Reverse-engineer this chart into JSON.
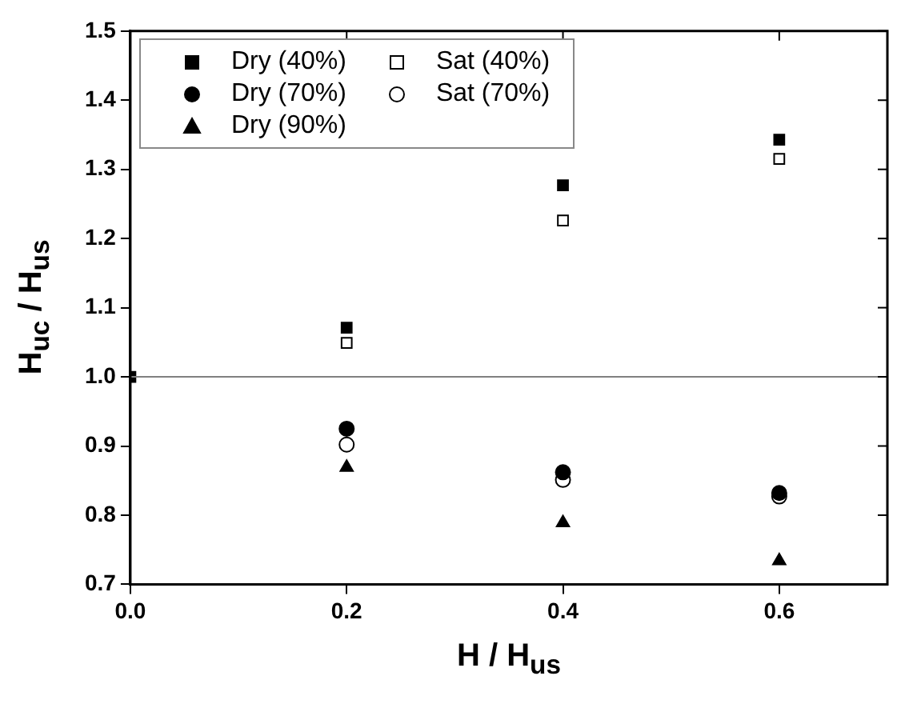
{
  "chart_data": {
    "type": "scatter",
    "xlabel": "H / H$_{us}$",
    "ylabel": "H$_{uc}$ / H$_{us}$",
    "xlim": [
      0,
      0.7
    ],
    "ylim": [
      0.7,
      1.5
    ],
    "xticks": [
      {
        "value": 0,
        "label": "0.0"
      },
      0.2,
      0.4,
      0.6
    ],
    "yticks": [
      0.7,
      0.8,
      0.9,
      {
        "value": 1,
        "label": "1.0"
      },
      1.1,
      1.2,
      1.3,
      1.4,
      1.5
    ],
    "grid": false,
    "legend": "top left",
    "ref_lines": [
      {
        "axis": "y",
        "value": 1,
        "color": "#808080"
      }
    ],
    "series": [
      {
        "name": "Dry (40%)",
        "color": "#000000",
        "marker": "square",
        "x": [
          0,
          0.2,
          0.4,
          0.6
        ],
        "values": [
          1.0,
          1.071,
          1.277,
          1.343
        ]
      },
      {
        "name": "Dry (70%)",
        "color": "#000000",
        "marker": "circle",
        "x": [
          0.2,
          0.4,
          0.6
        ],
        "values": [
          0.925,
          0.862,
          0.832
        ]
      },
      {
        "name": "Dry (90%)",
        "color": "#000000",
        "marker": "triangle",
        "x": [
          0.2,
          0.4,
          0.6
        ],
        "values": [
          0.869,
          0.789,
          0.734
        ]
      },
      {
        "name": "Sat (40%)",
        "color": "#ffffff",
        "marker": "square",
        "x": [
          0.2,
          0.4,
          0.6
        ],
        "values": [
          1.049,
          1.226,
          1.315
        ]
      },
      {
        "name": "Sat (70%)",
        "color": "#ffffff",
        "marker": "circle",
        "x": [
          0.2,
          0.4,
          0.6
        ],
        "values": [
          0.902,
          0.851,
          0.827
        ]
      }
    ]
  }
}
